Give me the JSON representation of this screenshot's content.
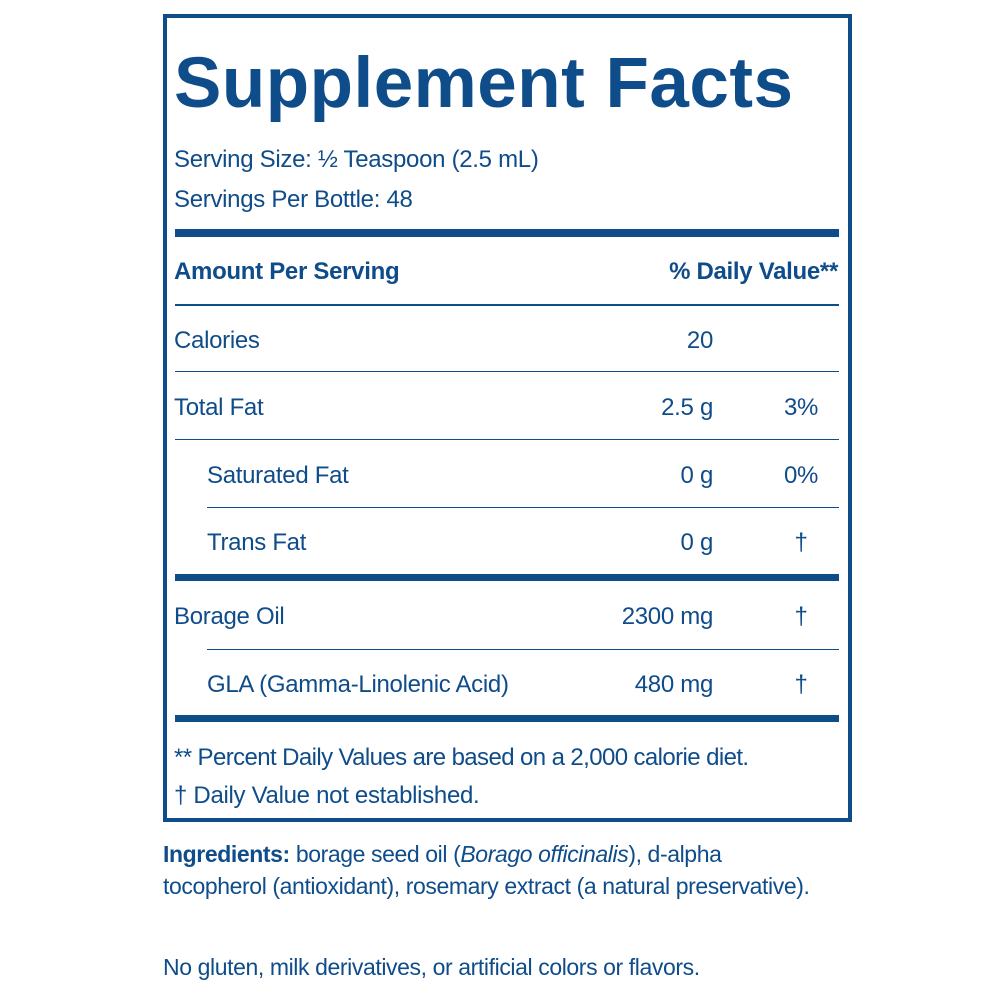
{
  "header": {
    "title": "Supplement Facts",
    "serving_size": "Serving Size: ½ Teaspoon (2.5 mL)",
    "servings_per_bottle": "Servings Per Bottle: 48"
  },
  "table": {
    "columns": [
      "Amount Per Serving",
      "% Daily Value**"
    ],
    "rows": [
      {
        "name": "Calories",
        "amount": "20"
      },
      {
        "name": "Total Fat",
        "amount": "2.5 g",
        "daily_value": "3%"
      },
      {
        "name": "Saturated Fat",
        "amount": "0 g",
        "daily_value": "0%"
      },
      {
        "name": "Trans Fat",
        "amount": "0 g",
        "daily_value": "†"
      },
      {
        "name": "Borage Oil",
        "amount": "2300 mg",
        "daily_value": "†"
      },
      {
        "name": "GLA (Gamma-Linolenic Acid)",
        "amount": "480 mg",
        "daily_value": "†"
      }
    ]
  },
  "footnotes": [
    "** Percent Daily Values are based on a 2,000 calorie diet.",
    "† Daily Value not established."
  ],
  "ingredients": {
    "label": "Ingredients:",
    "text_before": " borage seed oil (",
    "italic": "Borago officinalis",
    "text_after": "), d-alpha tocopherol (antioxidant), rosemary extract (a natural preservative)."
  },
  "note": "No gluten, milk derivatives, or artificial colors or flavors."
}
